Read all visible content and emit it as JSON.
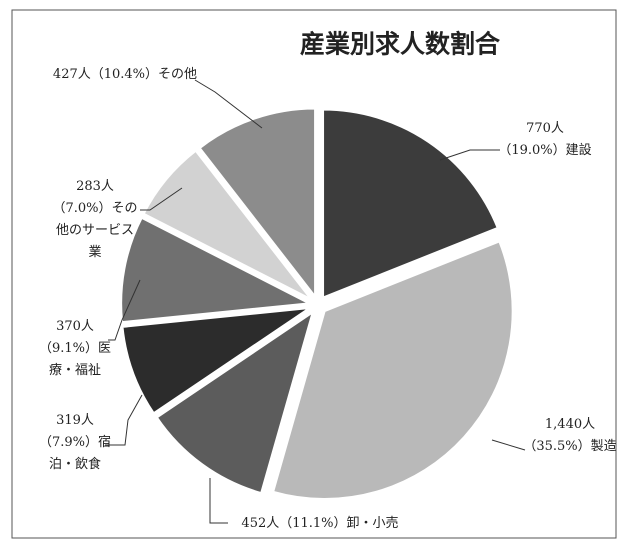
{
  "chart_data": {
    "type": "pie",
    "title": "産業別求人数割合",
    "categories": [
      "建設",
      "製造",
      "卸・小売",
      "宿泊・飲食",
      "医療・福祉",
      "その他のサービス業",
      "その他"
    ],
    "values": [
      770,
      1440,
      452,
      319,
      370,
      283,
      427
    ],
    "value_labels": [
      "770人（19.0%）",
      "1,440人（35.5%）",
      "452人（11.1%）",
      "319人（7.9%）",
      "370人（9.1%）",
      "283人（7.0%）",
      "427人（10.4%）"
    ],
    "colors": [
      "#3c3c3c",
      "#b9b9b9",
      "#5c5c5c",
      "#2c2c2c",
      "#707070",
      "#d2d2d2",
      "#8c8c8c"
    ]
  }
}
